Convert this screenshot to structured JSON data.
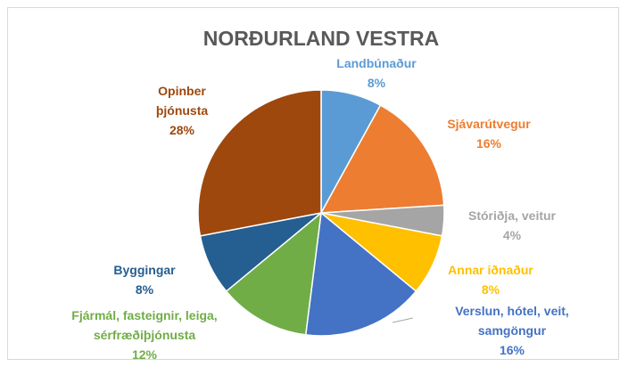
{
  "chart_data": {
    "type": "pie",
    "title": "NORÐURLAND VESTRA",
    "categories": [
      "Landbúnaður",
      "Sjávarútvegur",
      "Stóriðja, veitur",
      "Annar iðnaður",
      "Verslun, hótel, veit, samgöngur",
      "Fjármál, fasteignir, leiga, sérfræðiþjónusta",
      "Byggingar",
      "Opinber þjónusta"
    ],
    "values": [
      8,
      16,
      4,
      8,
      16,
      12,
      8,
      28
    ],
    "value_labels": [
      "8%",
      "16%",
      "4%",
      "8%",
      "16%",
      "12%",
      "8%",
      "28%"
    ],
    "colors": [
      "#5b9bd5",
      "#ed7d31",
      "#a5a5a5",
      "#ffc000",
      "#4472c4",
      "#70ad47",
      "#255e91",
      "#9e480e"
    ]
  }
}
